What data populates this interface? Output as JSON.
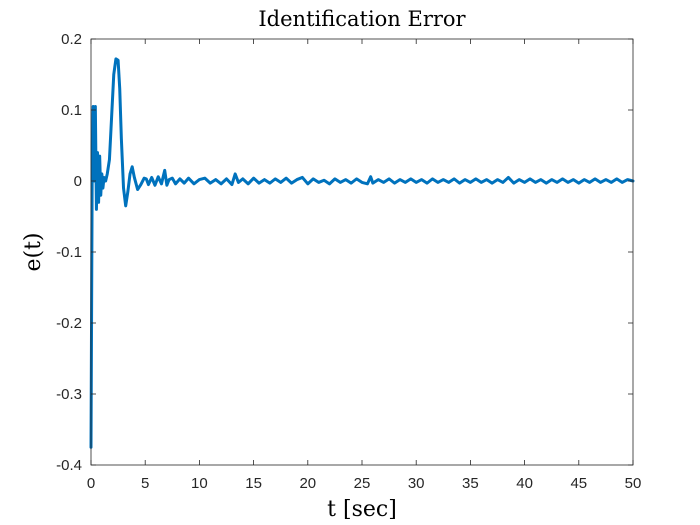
{
  "chart_data": {
    "type": "line",
    "title": "Identification Error",
    "xlabel": "t [sec]",
    "ylabel": "e(t)",
    "xlim": [
      0,
      50
    ],
    "ylim": [
      -0.4,
      0.2
    ],
    "xticks": [
      0,
      5,
      10,
      15,
      20,
      25,
      30,
      35,
      40,
      45,
      50
    ],
    "yticks": [
      -0.4,
      -0.3,
      -0.2,
      -0.1,
      0,
      0.1,
      0.2
    ],
    "xtick_labels": [
      "0",
      "5",
      "10",
      "15",
      "20",
      "25",
      "30",
      "35",
      "40",
      "45",
      "50"
    ],
    "ytick_labels": [
      "-0.4",
      "-0.3",
      "-0.2",
      "-0.1",
      "0",
      "0.1",
      "0.2"
    ],
    "grid": false,
    "box": true,
    "series": [
      {
        "color": "#0072BD",
        "x": [
          0,
          0.05,
          0.12,
          0.2,
          0.3,
          0.4,
          0.5,
          0.6,
          0.7,
          0.8,
          0.9,
          1.0,
          1.1,
          1.2,
          1.35,
          1.5,
          1.7,
          1.9,
          2.1,
          2.3,
          2.5,
          2.65,
          2.8,
          3.0,
          3.2,
          3.4,
          3.6,
          3.8,
          4.0,
          4.3,
          4.6,
          4.9,
          5.1,
          5.3,
          5.6,
          5.9,
          6.2,
          6.5,
          6.8,
          7.0,
          7.2,
          7.5,
          7.8,
          8.2,
          8.6,
          9.0,
          9.5,
          10,
          10.5,
          11,
          11.5,
          12,
          12.5,
          13,
          13.3,
          13.6,
          14,
          14.5,
          15,
          15.5,
          16,
          16.5,
          17,
          17.5,
          18,
          18.5,
          19,
          19.5,
          20,
          20.5,
          21,
          21.5,
          22,
          22.5,
          23,
          23.5,
          24,
          24.5,
          25,
          25.5,
          25.8,
          26,
          26.5,
          27,
          27.5,
          28,
          28.5,
          29,
          29.5,
          30,
          30.5,
          31,
          31.5,
          32,
          32.5,
          33,
          33.5,
          34,
          34.5,
          35,
          35.5,
          36,
          36.5,
          37,
          37.5,
          38,
          38.5,
          39,
          39.5,
          40,
          40.5,
          41,
          41.5,
          42,
          42.5,
          43,
          43.5,
          44,
          44.5,
          45,
          45.5,
          46,
          46.5,
          47,
          47.5,
          48,
          48.5,
          49,
          49.5,
          50
        ],
        "y": [
          -0.375,
          -0.2,
          0.05,
          0.105,
          0.0,
          0.105,
          -0.04,
          0.04,
          -0.03,
          0.035,
          -0.02,
          0.01,
          -0.01,
          0.005,
          0.0,
          0.01,
          0.03,
          0.09,
          0.15,
          0.172,
          0.17,
          0.13,
          0.06,
          -0.01,
          -0.035,
          -0.015,
          0.01,
          0.02,
          0.005,
          -0.012,
          -0.005,
          0.004,
          0.003,
          -0.005,
          0.005,
          -0.006,
          0.006,
          -0.004,
          0.015,
          -0.006,
          0.002,
          0.004,
          -0.004,
          0.003,
          -0.003,
          0.004,
          -0.004,
          0.002,
          0.004,
          -0.003,
          0.002,
          -0.004,
          0.003,
          -0.005,
          0.01,
          -0.002,
          0.003,
          -0.004,
          0.004,
          -0.003,
          0.002,
          -0.003,
          0.003,
          -0.002,
          0.004,
          -0.003,
          0.002,
          0.005,
          -0.004,
          0.003,
          -0.002,
          0.001,
          -0.004,
          0.003,
          -0.002,
          0.002,
          -0.003,
          0.003,
          -0.002,
          -0.004,
          0.006,
          -0.003,
          0.002,
          -0.002,
          0.003,
          -0.003,
          0.002,
          -0.002,
          0.003,
          -0.002,
          0.002,
          -0.003,
          0.003,
          -0.002,
          0.002,
          -0.002,
          0.003,
          -0.003,
          0.002,
          -0.002,
          0.003,
          -0.002,
          0.002,
          -0.003,
          0.002,
          -0.002,
          0.005,
          -0.003,
          0.002,
          -0.002,
          0.003,
          -0.002,
          0.002,
          -0.003,
          0.002,
          -0.002,
          0.003,
          -0.002,
          0.002,
          -0.003,
          0.002,
          -0.002,
          0.003,
          -0.002,
          0.002,
          -0.002,
          0.003,
          -0.002,
          0.002,
          0.0
        ]
      }
    ]
  }
}
